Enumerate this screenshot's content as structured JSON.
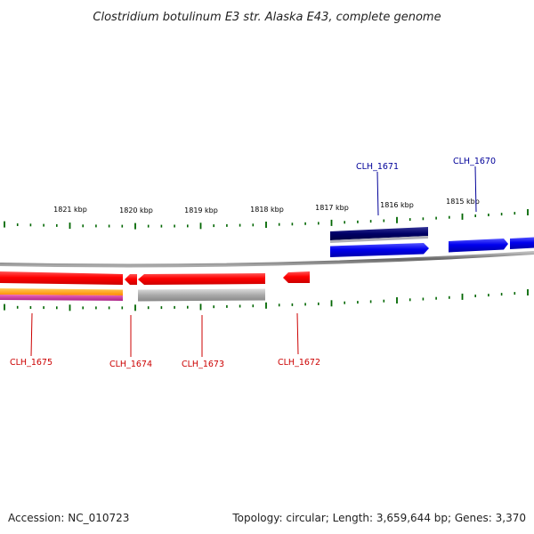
{
  "title": "Clostridium botulinum E3 str. Alaska E43, complete genome",
  "footer": {
    "accession": "Accession: NC_010723",
    "summary": "Topology: circular; Length: 3,659,644 bp; Genes: 3,370"
  },
  "colors": {
    "forward_gene": "#0000ee",
    "reverse_gene": "#ff0000",
    "forward_label": "#000099",
    "reverse_label": "#cc0000",
    "tick": "#006600",
    "backbone": "#888888",
    "orange_track": "#ff9900",
    "magenta_track": "#cc3399",
    "dark_navy_track": "#000066",
    "gray_track": "#aaaaaa"
  },
  "scale_labels": [
    "1821 kbp",
    "1820 kbp",
    "1819 kbp",
    "1818 kbp",
    "1817 kbp",
    "1816 kbp",
    "1815 kbp"
  ],
  "genes": {
    "forward": [
      {
        "name": "CLH_1671",
        "strand": "+"
      },
      {
        "name": "CLH_1670",
        "strand": "+"
      }
    ],
    "reverse": [
      {
        "name": "CLH_1675",
        "strand": "-"
      },
      {
        "name": "CLH_1674",
        "strand": "-"
      },
      {
        "name": "CLH_1673",
        "strand": "-"
      },
      {
        "name": "CLH_1672",
        "strand": "-"
      }
    ]
  }
}
